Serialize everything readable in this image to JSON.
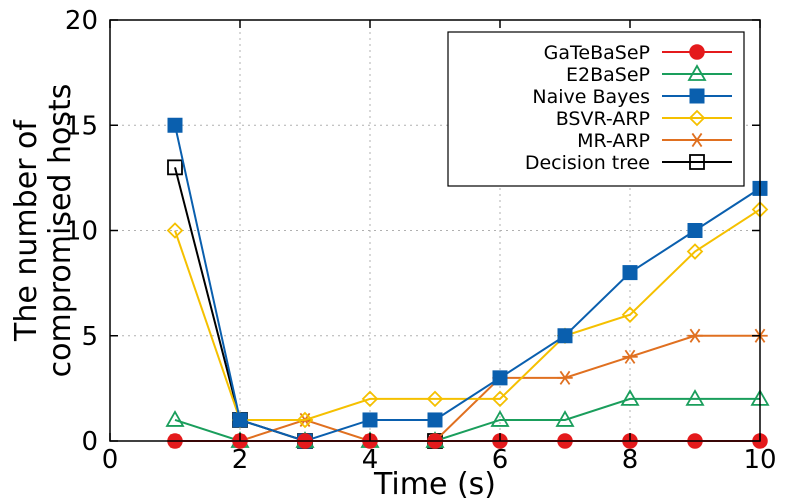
{
  "chart_data": {
    "type": "line",
    "xlabel": "Time (s)",
    "ylabel_lines": [
      "The number of",
      "compromised  hosts"
    ],
    "xlim": [
      0,
      10
    ],
    "ylim": [
      0,
      20
    ],
    "xticks": [
      0,
      2,
      4,
      6,
      8,
      10
    ],
    "yticks": [
      0,
      5,
      10,
      15,
      20
    ],
    "grid": true,
    "legend_position": "top-right",
    "x": [
      1,
      2,
      3,
      4,
      5,
      6,
      7,
      8,
      9,
      10
    ],
    "series": [
      {
        "name": "GaTeBaSeP",
        "color": "#e41a1c",
        "marker": "filled-circle",
        "values": [
          0,
          0,
          0,
          0,
          0,
          0,
          0,
          0,
          0,
          0
        ]
      },
      {
        "name": "E2BaSeP",
        "color": "#1a9e5c",
        "marker": "open-triangle",
        "values": [
          1,
          0,
          0,
          0,
          0,
          1,
          1,
          2,
          2,
          2
        ]
      },
      {
        "name": "Naive Bayes",
        "color": "#0a5fae",
        "marker": "filled-square",
        "values": [
          15,
          1,
          0,
          1,
          1,
          3,
          5,
          8,
          10,
          12
        ]
      },
      {
        "name": "BSVR-ARP",
        "color": "#f5c000",
        "marker": "open-diamond",
        "values": [
          10,
          1,
          1,
          2,
          2,
          2,
          5,
          6,
          9,
          11
        ]
      },
      {
        "name": "MR-ARP",
        "color": "#e07020",
        "marker": "asterisk",
        "values": [
          0,
          0,
          1,
          0,
          0,
          3,
          3,
          4,
          5,
          5
        ]
      },
      {
        "name": "Decision tree",
        "color": "#000000",
        "marker": "open-square",
        "values": [
          13,
          1,
          0,
          null,
          0,
          null,
          null,
          null,
          null,
          null
        ]
      }
    ]
  }
}
